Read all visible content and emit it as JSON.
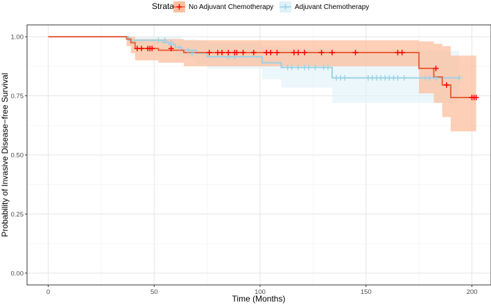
{
  "chart_data": {
    "type": "line",
    "step": true,
    "xlabel": "Time (Months)",
    "ylabel": "Probability of Invasive Disease−free Survival",
    "xlim": [
      -10,
      209
    ],
    "ylim": [
      -0.05,
      1.05
    ],
    "x_ticks": [
      0,
      50,
      100,
      150,
      200
    ],
    "x_tick_labels": [
      "0",
      "50",
      "100",
      "150",
      "200"
    ],
    "y_ticks": [
      0,
      0.25,
      0.5,
      0.75,
      1.0
    ],
    "y_tick_labels": [
      "0.00",
      "0.25",
      "0.50",
      "0.75",
      "1.00"
    ],
    "grid": true,
    "legend": {
      "title": "Strata",
      "position": "top"
    },
    "series": [
      {
        "name": "No Adjuvant Chemotherapy",
        "color": "#f8766d",
        "line_color": "#e8603c",
        "band_color": "#fcbf9e",
        "censor_color": "#ff0000",
        "steps": [
          {
            "x": 0,
            "y": 1.0
          },
          {
            "x": 37,
            "y": 0.99
          },
          {
            "x": 39,
            "y": 0.975
          },
          {
            "x": 41,
            "y": 0.95
          },
          {
            "x": 52,
            "y": 0.943
          },
          {
            "x": 64,
            "y": 0.933
          },
          {
            "x": 175,
            "y": 0.866
          },
          {
            "x": 182,
            "y": 0.83
          },
          {
            "x": 186,
            "y": 0.796
          },
          {
            "x": 190,
            "y": 0.743
          },
          {
            "x": 202,
            "y": 0.743
          }
        ],
        "ci_upper": [
          1.0,
          1.0,
          1.0,
          0.99,
          0.99,
          0.985,
          0.98,
          0.97,
          0.96,
          0.92,
          0.92
        ],
        "ci_lower": [
          1.0,
          0.96,
          0.93,
          0.9,
          0.89,
          0.875,
          0.76,
          0.72,
          0.66,
          0.6,
          0.6
        ],
        "censor_x": [
          42,
          44,
          47,
          48,
          49,
          58,
          76,
          80,
          82,
          85,
          88,
          89,
          92,
          97,
          103,
          105,
          108,
          116,
          118,
          121,
          129,
          134,
          145,
          165,
          167,
          183,
          188,
          200,
          201,
          202
        ],
        "censor_y": [
          0.95,
          0.95,
          0.95,
          0.95,
          0.95,
          0.95,
          0.933,
          0.933,
          0.933,
          0.933,
          0.933,
          0.933,
          0.933,
          0.933,
          0.933,
          0.933,
          0.933,
          0.933,
          0.933,
          0.933,
          0.933,
          0.933,
          0.933,
          0.933,
          0.933,
          0.866,
          0.796,
          0.743,
          0.743,
          0.743
        ]
      },
      {
        "name": "Adjuvant Chemotherapy",
        "color": "#9ad2e6",
        "line_color": "#9ad2e6",
        "band_color": "#dff1f9",
        "censor_color": "#9ad2e6",
        "steps": [
          {
            "x": 0,
            "y": 1.0
          },
          {
            "x": 38,
            "y": 0.985
          },
          {
            "x": 54,
            "y": 0.976
          },
          {
            "x": 57,
            "y": 0.967
          },
          {
            "x": 60,
            "y": 0.955
          },
          {
            "x": 63,
            "y": 0.943
          },
          {
            "x": 70,
            "y": 0.93
          },
          {
            "x": 75,
            "y": 0.915
          },
          {
            "x": 101,
            "y": 0.89
          },
          {
            "x": 110,
            "y": 0.87
          },
          {
            "x": 134,
            "y": 0.826
          },
          {
            "x": 194,
            "y": 0.826
          }
        ],
        "ci_upper": [
          1.0,
          1.0,
          1.0,
          1.0,
          1.0,
          0.99,
          0.985,
          0.975,
          0.96,
          0.95,
          0.94,
          0.94
        ],
        "ci_lower": [
          1.0,
          0.97,
          0.95,
          0.935,
          0.92,
          0.905,
          0.885,
          0.865,
          0.82,
          0.785,
          0.72,
          0.72
        ],
        "censor_x": [
          52,
          55,
          58,
          62,
          66,
          68,
          85,
          88,
          113,
          115,
          118,
          121,
          123,
          126,
          130,
          132,
          136,
          138,
          140,
          151,
          153,
          155,
          157,
          159,
          161,
          163,
          165,
          168,
          178,
          180,
          183,
          194
        ],
        "censor_y": [
          0.985,
          0.985,
          0.976,
          0.955,
          0.943,
          0.93,
          0.915,
          0.915,
          0.87,
          0.87,
          0.87,
          0.87,
          0.87,
          0.87,
          0.87,
          0.87,
          0.826,
          0.826,
          0.826,
          0.826,
          0.826,
          0.826,
          0.826,
          0.826,
          0.826,
          0.826,
          0.826,
          0.826,
          0.826,
          0.826,
          0.826,
          0.826
        ]
      }
    ]
  }
}
